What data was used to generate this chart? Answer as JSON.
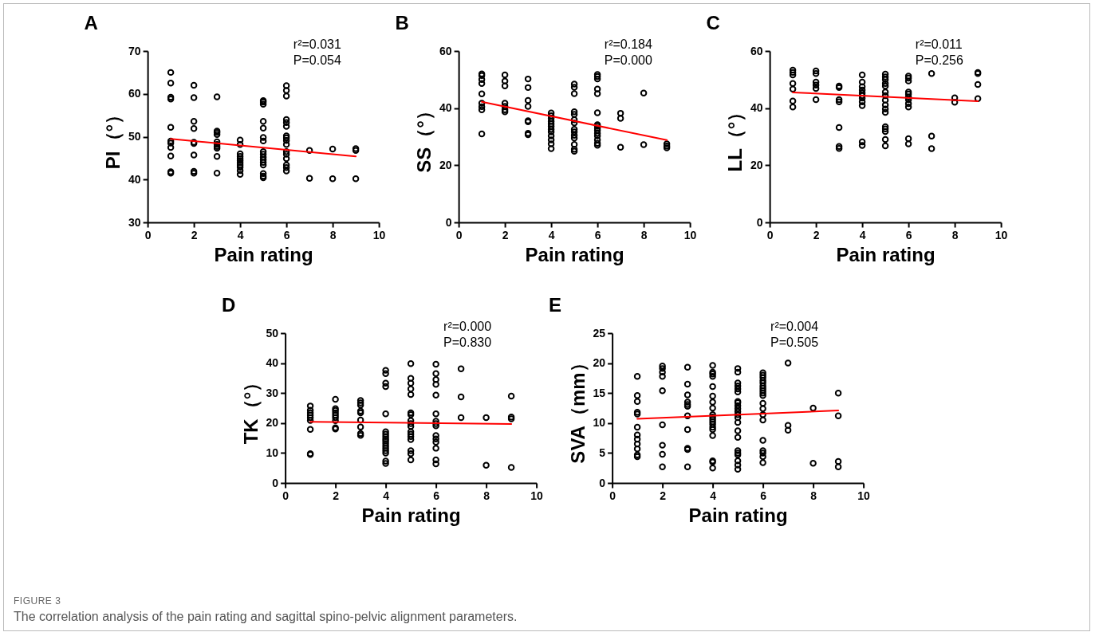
{
  "chart_data": [
    {
      "type": "scatter",
      "title": "A",
      "xlabel": "Pain rating",
      "ylabel": "PI（°）",
      "xlim": [
        0,
        10
      ],
      "xticks": [
        0,
        2,
        4,
        6,
        8,
        10
      ],
      "ylim": [
        30,
        70
      ],
      "yticks": [
        30,
        40,
        50,
        60,
        70
      ],
      "grid": false,
      "annotations": [
        "r²=0.031",
        "P=0.054"
      ],
      "series": [
        {
          "type": "scatter",
          "marker": "circle",
          "color": "#000000",
          "x": [
            1,
            1,
            1,
            1,
            1,
            1,
            1,
            1,
            1,
            1,
            1,
            2,
            2,
            2,
            2,
            2,
            2,
            2,
            2,
            2,
            3,
            3,
            3,
            3,
            3,
            3,
            3,
            3,
            3,
            3,
            4,
            4,
            4,
            4,
            4,
            4,
            4,
            4,
            4,
            4,
            4,
            5,
            5,
            5,
            5,
            5,
            5,
            5,
            5,
            5,
            5,
            5,
            5,
            5,
            5,
            5,
            5,
            6,
            6,
            6,
            6,
            6,
            6,
            6,
            6,
            6,
            6,
            6,
            6,
            6,
            6,
            6,
            6,
            7,
            7,
            8,
            8,
            9,
            9,
            9
          ],
          "values": [
            65.0,
            62.5,
            59.2,
            58.8,
            52.2,
            49.0,
            48.5,
            47.5,
            45.5,
            41.8,
            41.5,
            62.0,
            59.1,
            53.6,
            51.9,
            48.7,
            48.4,
            45.7,
            41.9,
            41.5,
            59.3,
            51.3,
            51.0,
            50.5,
            48.8,
            48.2,
            47.7,
            47.3,
            45.4,
            41.5,
            49.2,
            48.2,
            46.0,
            45.4,
            44.9,
            44.4,
            43.9,
            43.4,
            42.9,
            42.1,
            41.2,
            58.4,
            58.1,
            57.6,
            53.6,
            52.0,
            49.8,
            49.0,
            46.5,
            45.9,
            45.2,
            44.6,
            44.0,
            43.4,
            41.4,
            40.8,
            40.4,
            61.9,
            60.8,
            59.5,
            54.0,
            53.3,
            52.4,
            50.2,
            49.7,
            49.1,
            48.2,
            46.5,
            45.9,
            44.9,
            43.4,
            42.8,
            42.0,
            46.8,
            40.3,
            47.1,
            40.2,
            47.2,
            46.8,
            40.2
          ]
        },
        {
          "type": "line",
          "marker": "none",
          "color": "#ff0000",
          "x": [
            1,
            9
          ],
          "values": [
            49.5,
            45.4
          ]
        }
      ]
    },
    {
      "type": "scatter",
      "title": "B",
      "xlabel": "Pain rating",
      "ylabel": "SS（°）",
      "xlim": [
        0,
        10
      ],
      "xticks": [
        0,
        2,
        4,
        6,
        8,
        10
      ],
      "ylim": [
        0,
        60
      ],
      "yticks": [
        0,
        20,
        40,
        60
      ],
      "grid": false,
      "annotations": [
        "r²=0.184",
        "P=0.000"
      ],
      "series": [
        {
          "type": "scatter",
          "marker": "circle",
          "color": "#000000",
          "x": [
            1,
            1,
            1,
            1,
            1,
            1,
            1,
            1,
            1,
            2,
            2,
            2,
            2,
            2,
            2,
            2,
            3,
            3,
            3,
            3,
            3,
            3,
            3,
            3,
            4,
            4,
            4,
            4,
            4,
            4,
            4,
            4,
            4,
            4,
            4,
            4,
            5,
            5,
            5,
            5,
            5,
            5,
            5,
            5,
            5,
            5,
            5,
            5,
            5,
            5,
            6,
            6,
            6,
            6,
            6,
            6,
            6,
            6,
            6,
            6,
            6,
            6,
            6,
            6,
            6,
            7,
            7,
            7,
            8,
            8,
            9,
            9,
            9
          ],
          "values": [
            52.0,
            51.4,
            50.0,
            48.6,
            45.0,
            41.7,
            40.5,
            39.4,
            31.0,
            51.6,
            49.5,
            47.8,
            41.7,
            40.6,
            39.4,
            38.7,
            50.2,
            47.2,
            42.7,
            40.6,
            35.6,
            35.2,
            31.2,
            30.7,
            38.3,
            37.3,
            36.4,
            35.4,
            34.5,
            33.6,
            32.6,
            31.7,
            30.3,
            28.9,
            27.5,
            25.8,
            48.4,
            47.3,
            45.1,
            38.7,
            37.8,
            35.9,
            34.8,
            32.6,
            31.7,
            30.5,
            29.5,
            27.3,
            25.6,
            24.9,
            51.8,
            51.1,
            50.2,
            46.7,
            45.1,
            38.4,
            34.2,
            33.6,
            32.9,
            32.2,
            31.2,
            30.3,
            28.9,
            27.7,
            27.0,
            38.2,
            36.4,
            26.3,
            45.3,
            27.2,
            27.5,
            26.7,
            26.1
          ]
        },
        {
          "type": "line",
          "marker": "none",
          "color": "#ff0000",
          "x": [
            1,
            9
          ],
          "values": [
            42.2,
            28.8
          ]
        }
      ]
    },
    {
      "type": "scatter",
      "title": "C",
      "xlabel": "Pain rating",
      "ylabel": "LL（°）",
      "xlim": [
        0,
        10
      ],
      "xticks": [
        0,
        2,
        4,
        6,
        8,
        10
      ],
      "ylim": [
        0,
        60
      ],
      "yticks": [
        0,
        20,
        40,
        60
      ],
      "grid": false,
      "annotations": [
        "r²=0.011",
        "P=0.256"
      ],
      "series": [
        {
          "type": "scatter",
          "marker": "circle",
          "color": "#000000",
          "x": [
            1,
            1,
            1,
            1,
            1,
            1,
            1,
            2,
            2,
            2,
            2,
            2,
            2,
            3,
            3,
            3,
            3,
            3,
            3,
            3,
            4,
            4,
            4,
            4,
            4,
            4,
            4,
            4,
            4,
            4,
            4,
            5,
            5,
            5,
            5,
            5,
            5,
            5,
            5,
            5,
            5,
            5,
            5,
            5,
            5,
            5,
            5,
            6,
            6,
            6,
            6,
            6,
            6,
            6,
            6,
            6,
            6,
            6,
            7,
            7,
            7,
            8,
            8,
            9,
            9,
            9,
            9
          ],
          "values": [
            53.3,
            52.5,
            51.6,
            48.6,
            46.7,
            42.5,
            40.4,
            53.0,
            52.1,
            49.1,
            48.1,
            46.9,
            43.0,
            47.7,
            47.2,
            43.0,
            42.2,
            33.2,
            26.6,
            25.9,
            51.6,
            49.1,
            47.5,
            46.3,
            45.3,
            44.4,
            43.5,
            42.2,
            40.9,
            28.2,
            26.9,
            51.9,
            50.9,
            50.0,
            48.6,
            47.7,
            45.6,
            44.4,
            42.8,
            41.1,
            39.7,
            38.5,
            33.5,
            32.7,
            31.8,
            29.0,
            26.8,
            51.2,
            50.5,
            49.5,
            45.6,
            44.9,
            43.9,
            43.0,
            41.6,
            40.4,
            29.3,
            27.5,
            52.1,
            30.2,
            25.8,
            43.6,
            42.1,
            52.5,
            52.1,
            48.3,
            43.3
          ]
        },
        {
          "type": "line",
          "marker": "none",
          "color": "#ff0000",
          "x": [
            1,
            9
          ],
          "values": [
            45.5,
            42.4
          ]
        }
      ]
    },
    {
      "type": "scatter",
      "title": "D",
      "xlabel": "Pain rating",
      "ylabel": "TK（°）",
      "xlim": [
        0,
        10
      ],
      "xticks": [
        0,
        2,
        4,
        6,
        8,
        10
      ],
      "ylim": [
        0,
        50
      ],
      "yticks": [
        0,
        10,
        20,
        30,
        40,
        50
      ],
      "grid": false,
      "annotations": [
        "r²=0.000",
        "P=0.830"
      ],
      "series": [
        {
          "type": "scatter",
          "marker": "circle",
          "color": "#000000",
          "x": [
            1,
            1,
            1,
            1,
            1,
            1,
            1,
            1,
            1,
            2,
            2,
            2,
            2,
            2,
            2,
            2,
            2,
            2,
            3,
            3,
            3,
            3,
            3,
            3,
            3,
            3,
            3,
            4,
            4,
            4,
            4,
            4,
            4,
            4,
            4,
            4,
            4,
            4,
            4,
            4,
            4,
            4,
            4,
            4,
            5,
            5,
            5,
            5,
            5,
            5,
            5,
            5,
            5,
            5,
            5,
            5,
            5,
            5,
            5,
            5,
            5,
            6,
            6,
            6,
            6,
            6,
            6,
            6,
            6,
            6,
            6,
            6,
            6,
            6,
            6,
            6,
            7,
            7,
            7,
            8,
            8,
            9,
            9,
            9,
            9
          ],
          "values": [
            25.7,
            24.3,
            23.4,
            22.6,
            21.8,
            20.9,
            17.9,
            9.8,
            9.5,
            27.9,
            24.8,
            24.2,
            23.4,
            22.6,
            21.8,
            20.8,
            18.4,
            18.0,
            27.5,
            26.7,
            26.0,
            24.0,
            23.4,
            21.0,
            18.7,
            16.5,
            15.9,
            37.6,
            36.5,
            33.3,
            32.2,
            23.1,
            17.1,
            16.3,
            15.5,
            14.7,
            14.0,
            13.2,
            12.4,
            11.6,
            10.8,
            10.0,
            7.3,
            6.5,
            39.8,
            34.9,
            33.3,
            31.4,
            29.5,
            23.4,
            22.8,
            20.8,
            19.8,
            18.9,
            17.1,
            16.3,
            15.5,
            14.5,
            10.8,
            9.8,
            7.7,
            39.6,
            36.5,
            34.5,
            32.9,
            29.3,
            23.1,
            20.6,
            19.8,
            19.1,
            15.8,
            14.7,
            13.6,
            11.6,
            7.7,
            6.4,
            38.1,
            28.7,
            21.8,
            21.8,
            5.9,
            29.0,
            22.0,
            21.4,
            5.2
          ]
        },
        {
          "type": "line",
          "marker": "none",
          "color": "#ff0000",
          "x": [
            1,
            9
          ],
          "values": [
            20.4,
            19.7
          ]
        }
      ]
    },
    {
      "type": "scatter",
      "title": "E",
      "xlabel": "Pain rating",
      "ylabel": "SVA（mm）",
      "xlim": [
        0,
        10
      ],
      "xticks": [
        0,
        2,
        4,
        6,
        8,
        10
      ],
      "ylim": [
        0,
        25
      ],
      "yticks": [
        0,
        5,
        10,
        15,
        20,
        25
      ],
      "grid": false,
      "annotations": [
        "r²=0.004",
        "P=0.505"
      ],
      "series": [
        {
          "type": "scatter",
          "marker": "circle",
          "color": "#000000",
          "x": [
            1,
            1,
            1,
            1,
            1,
            1,
            1,
            1,
            1,
            1,
            1,
            1,
            2,
            2,
            2,
            2,
            2,
            2,
            2,
            2,
            2,
            3,
            3,
            3,
            3,
            3,
            3,
            3,
            3,
            3,
            3,
            3,
            4,
            4,
            4,
            4,
            4,
            4,
            4,
            4,
            4,
            4,
            4,
            4,
            4,
            4,
            4,
            4,
            4,
            4,
            4,
            5,
            5,
            5,
            5,
            5,
            5,
            5,
            5,
            5,
            5,
            5,
            5,
            5,
            5,
            5,
            5,
            5,
            5,
            5,
            5,
            5,
            5,
            6,
            6,
            6,
            6,
            6,
            6,
            6,
            6,
            6,
            6,
            6,
            6,
            6,
            6,
            6,
            6,
            6,
            6,
            6,
            7,
            7,
            7,
            8,
            8,
            9,
            9,
            9,
            9
          ],
          "values": [
            17.8,
            14.6,
            13.6,
            11.8,
            11.5,
            9.3,
            8.0,
            7.3,
            6.5,
            5.7,
            4.7,
            4.4,
            19.5,
            19.1,
            18.5,
            17.8,
            15.4,
            9.7,
            6.3,
            4.8,
            2.7,
            19.3,
            16.5,
            14.7,
            13.5,
            13.1,
            12.8,
            11.2,
            8.9,
            5.8,
            5.6,
            2.7,
            19.6,
            18.5,
            18.2,
            17.8,
            16.1,
            14.5,
            13.5,
            12.5,
            11.4,
            11.0,
            10.6,
            10.2,
            9.8,
            9.3,
            8.9,
            7.9,
            3.7,
            3.5,
            2.5,
            19.1,
            18.5,
            16.7,
            16.2,
            15.7,
            15.2,
            13.6,
            13.4,
            12.9,
            12.4,
            11.9,
            11.4,
            10.9,
            10.1,
            8.7,
            7.6,
            5.4,
            5.0,
            4.7,
            3.7,
            3.0,
            2.3,
            18.4,
            18.0,
            17.6,
            17.1,
            16.7,
            16.2,
            15.8,
            15.4,
            15.0,
            14.6,
            13.3,
            12.4,
            11.4,
            10.5,
            7.1,
            5.4,
            5.0,
            4.4,
            3.4,
            20.0,
            9.6,
            8.8,
            12.5,
            3.3,
            15.0,
            11.2,
            3.6,
            2.7
          ]
        },
        {
          "type": "line",
          "marker": "none",
          "color": "#ff0000",
          "x": [
            1,
            9
          ],
          "values": [
            10.7,
            12.1
          ]
        }
      ]
    },
    {
      "type": "other",
      "title": "FIGURE 3",
      "subtitle": "The correlation analysis of the pain rating and sagittal spino-pelvic alignment parameters."
    }
  ]
}
